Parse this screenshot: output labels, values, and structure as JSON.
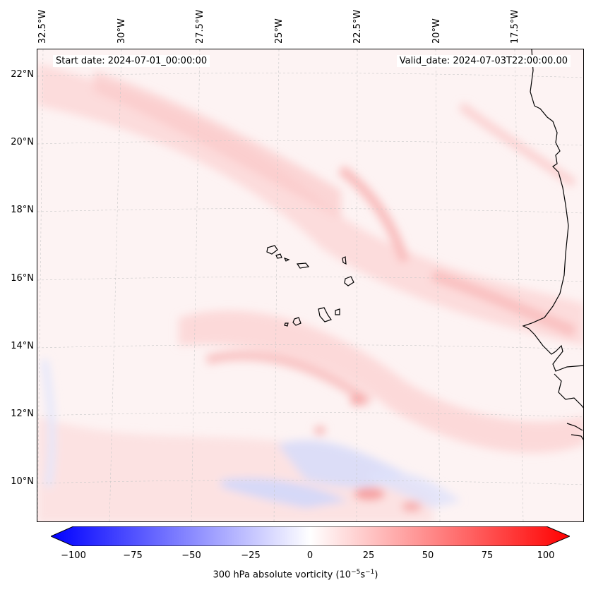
{
  "map": {
    "longitude_labels": [
      "32.5°W",
      "30°W",
      "27.5°W",
      "25°W",
      "22.5°W",
      "20°W",
      "17.5°W"
    ],
    "latitude_labels": [
      "22°N",
      "20°N",
      "18°N",
      "16°N",
      "14°N",
      "12°N",
      "10°N"
    ],
    "start_date": "Start date: 2024-07-01_00:00:00",
    "valid_date": "Valid_date: 2024-07-03T22:00:00.00",
    "region": "Cape Verde islands and West African coast",
    "field_colors": {
      "positive": "#ff0000",
      "negative": "#0000ff",
      "neutral": "#ffffff",
      "land_outline": "#000000"
    }
  },
  "colorbar": {
    "ticks": [
      "−100",
      "−75",
      "−50",
      "−25",
      "0",
      "25",
      "50",
      "75",
      "100"
    ],
    "range": [
      -100,
      100
    ],
    "label_text": "300 hPa absolute vorticity (10",
    "label_sup1": "−5",
    "label_mid": "s",
    "label_sup2": "−1",
    "label_end": ")"
  }
}
